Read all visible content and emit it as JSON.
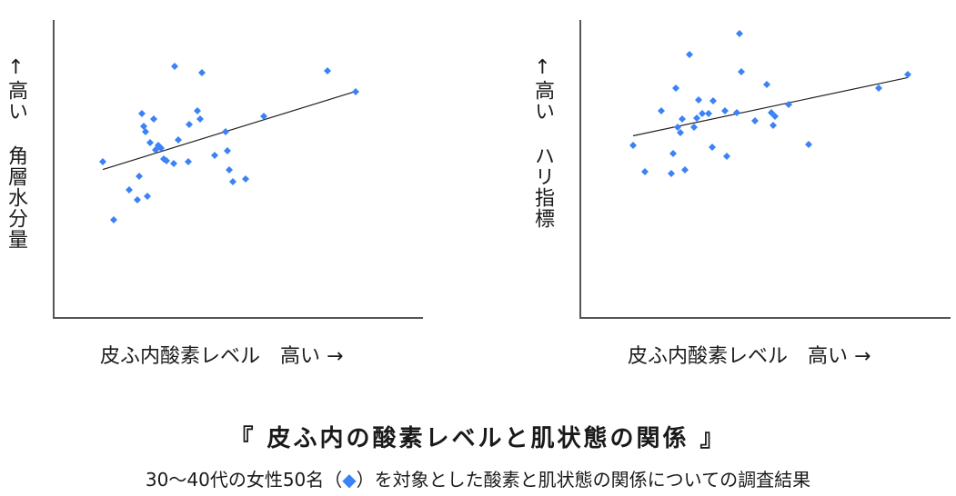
{
  "chart_data": [
    {
      "type": "scatter",
      "ylabel": "↑高い 角層水分量",
      "xlabel": "皮ふ内酸素レベル　高い →",
      "grid": false,
      "trendline": true,
      "series": [
        {
          "color": "#3b82f6",
          "points": [
            [
              113,
              178
            ],
            [
              125,
              242
            ],
            [
              142,
              209
            ],
            [
              151,
              220
            ],
            [
              153,
              194
            ],
            [
              156,
              125
            ],
            [
              158,
              139
            ],
            [
              160,
              145
            ],
            [
              162,
              216
            ],
            [
              165,
              157
            ],
            [
              169,
              131
            ],
            [
              171,
              165
            ],
            [
              174,
              160
            ],
            [
              177,
              163
            ],
            [
              180,
              175
            ],
            [
              183,
              177
            ],
            [
              191,
              180
            ],
            [
              192,
              73
            ],
            [
              196,
              154
            ],
            [
              207,
              178
            ],
            [
              208,
              137
            ],
            [
              217,
              122
            ],
            [
              220,
              131
            ],
            [
              222,
              80
            ],
            [
              236,
              171
            ],
            [
              248,
              145
            ],
            [
              250,
              166
            ],
            [
              252,
              187
            ],
            [
              256,
              200
            ],
            [
              270,
              197
            ],
            [
              290,
              128
            ],
            [
              360,
              78
            ],
            [
              391,
              101
            ]
          ]
        }
      ]
    },
    {
      "type": "scatter",
      "ylabel": "↑高い ハリ指標",
      "xlabel": "皮ふ内酸素レベル　高い →",
      "grid": false,
      "trendline": true,
      "series": [
        {
          "color": "#3b82f6",
          "points": [
            [
              696,
              160
            ],
            [
              709,
              189
            ],
            [
              727,
              122
            ],
            [
              738,
              191
            ],
            [
              740,
              169
            ],
            [
              743,
              97
            ],
            [
              745,
              140
            ],
            [
              748,
              146
            ],
            [
              750,
              131
            ],
            [
              753,
              187
            ],
            [
              758,
              60
            ],
            [
              763,
              140
            ],
            [
              766,
              130
            ],
            [
              768,
              110
            ],
            [
              772,
              125
            ],
            [
              779,
              125
            ],
            [
              783,
              162
            ],
            [
              784,
              111
            ],
            [
              797,
              122
            ],
            [
              799,
              172
            ],
            [
              810,
              124
            ],
            [
              813,
              37
            ],
            [
              815,
              79
            ],
            [
              830,
              133
            ],
            [
              843,
              93
            ],
            [
              848,
              124
            ],
            [
              850,
              138
            ],
            [
              852,
              128
            ],
            [
              867,
              115
            ],
            [
              889,
              159
            ],
            [
              966,
              97
            ],
            [
              998,
              82
            ]
          ]
        }
      ]
    }
  ],
  "caption": {
    "title": "『 皮ふ内の酸素レベルと肌状態の関係 』",
    "note_prefix": "30～40代の女性50名（",
    "note_symbol": "◆",
    "note_suffix": "）を対象とした酸素と肌状態の関係についての調査結果"
  }
}
